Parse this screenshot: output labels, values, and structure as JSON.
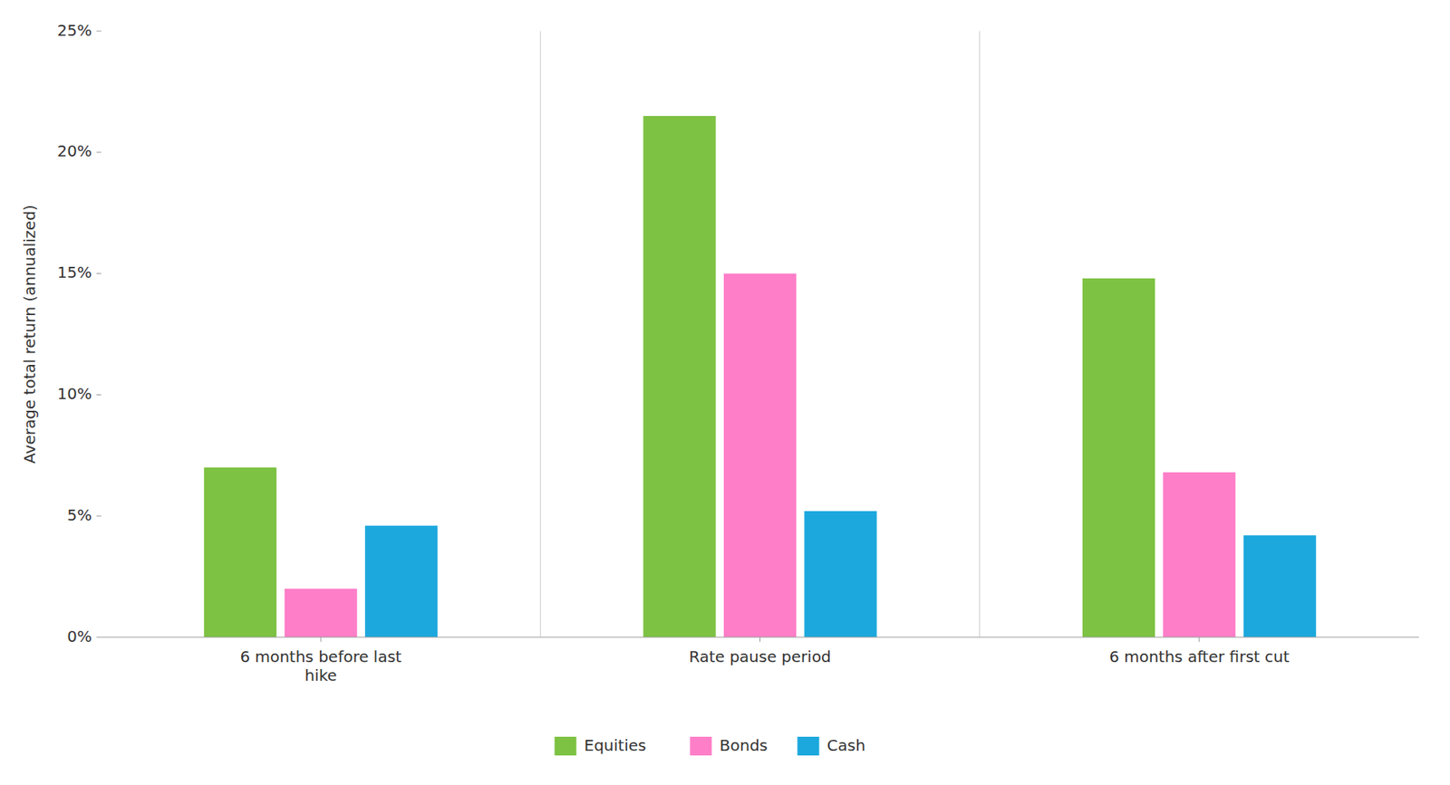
{
  "chart_data": {
    "type": "bar",
    "categories": [
      "6 months before last\nhike",
      "Rate pause period",
      "6 months after first cut"
    ],
    "series": [
      {
        "name": "Equities",
        "color": "#7DC242",
        "values": [
          7.0,
          21.5,
          14.8
        ]
      },
      {
        "name": "Bonds",
        "color": "#FF7EC8",
        "values": [
          2.0,
          15.0,
          6.8
        ]
      },
      {
        "name": "Cash",
        "color": "#1CA8DD",
        "values": [
          4.6,
          5.2,
          4.2
        ]
      }
    ],
    "ylabel": "Average total return (annualized)",
    "ylim": [
      0,
      25
    ],
    "yticks": [
      {
        "value": 0,
        "label": "0%"
      },
      {
        "value": 5,
        "label": "5%"
      },
      {
        "value": 10,
        "label": "10%"
      },
      {
        "value": 15,
        "label": "15%"
      },
      {
        "value": 20,
        "label": "20%"
      },
      {
        "value": 25,
        "label": "25%"
      }
    ],
    "grid": false,
    "legend": "bottom"
  }
}
